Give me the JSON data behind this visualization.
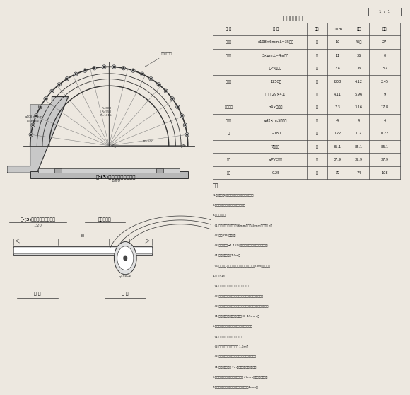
{
  "bg_color": "#ede8e0",
  "table_title": "主要工程数量表",
  "table_cols": [
    "类 别",
    "规 格",
    "单位",
    "L=m",
    "根数",
    "根数"
  ],
  "table_rows": [
    [
      "大管棚",
      "φ108×6mm,L=35钉管",
      "根",
      "10",
      "46根",
      "27"
    ],
    [
      "小导管",
      "3×φm,L=4m钉管",
      "根",
      "11",
      "36",
      "0"
    ],
    [
      "",
      "券25工字钉",
      "根",
      "2.4",
      "26",
      "3.2"
    ],
    [
      "钉架拱",
      "125C钉",
      "根",
      "2.08",
      "4.12",
      "2.45"
    ],
    [
      "",
      "格削拱(29×4.1)",
      "根",
      "4.11",
      "5.96",
      "9"
    ],
    [
      "超前镤杆",
      "τ4×钉钉筋",
      "根",
      "7.3",
      "3.16",
      "17.8"
    ],
    [
      "小导管",
      "φ42×m,5度倾角",
      "根",
      "4",
      "4",
      "4"
    ],
    [
      "水",
      "G-780",
      "根",
      "0.22",
      "0.2",
      "0.22"
    ],
    [
      "",
      "7股钉束",
      "根",
      "85.1",
      "85.1",
      "85.1"
    ],
    [
      "超前",
      "φPVC塑管",
      "根",
      "37.9",
      "37.9",
      "37.9"
    ],
    [
      "台座",
      "C.25",
      "根",
      "72",
      "74",
      "108"
    ]
  ],
  "notes": [
    "注：",
    "1.钉拱架采用I型钉架，管棚支撑力大，刚度足强。",
    "2.当倾斜角不大时应注意控制管棚方向。",
    "3.长管棚主要：",
    "  (1)钉管规格：外径，壁厕96mm，壁咄40mm，孔节距 n。",
    "  (2)套拱 I25 钉级结。",
    "  (3)钉管，长度→1-15%钉架横距以上、与合钉架整体施工。",
    "  (4)钒孔角，进尺为7.0m。",
    "  (5)管棚支护-套拱及导向墙内设置，根据管棚长度(30)注意施工。",
    "4.小导管(1)：",
    "  (1)导管采用热扎，穿孔方式注水泥沙浆。",
    "  (2)小导管的上仰角与纵向间距大，施工中按实际地层而定。",
    "  (3)钉管的注浆压力按设计要求，小导管数量、规格、施工配合比。",
    "  (4)注浆材料：水灰比、配方参数(3~15mm)。",
    "5.超前镤杆按图纸施工，出现矛盾时需联系设计。",
    "  (1)施工前清楚，无误方可施工。",
    "  (2)全长粘结型，具体拱距为 1.0m。",
    "  (3)当钉管套管不能旋转时，按设计施工方法替代。",
    "  (4)钒孔深度达不到 7m时，再钒一次再行注浆。",
    "6.施工时各排管棚之间，遇到打孔出现+7mm，应回填干水泥。",
    "7.钉管接头形式为丝扣连接，入射角不得大于1mm。"
  ],
  "drawing_title": "第-(3)种长管棚套拱设计图",
  "drawing_scale": "1:50",
  "section_title": "管棚大样图"
}
